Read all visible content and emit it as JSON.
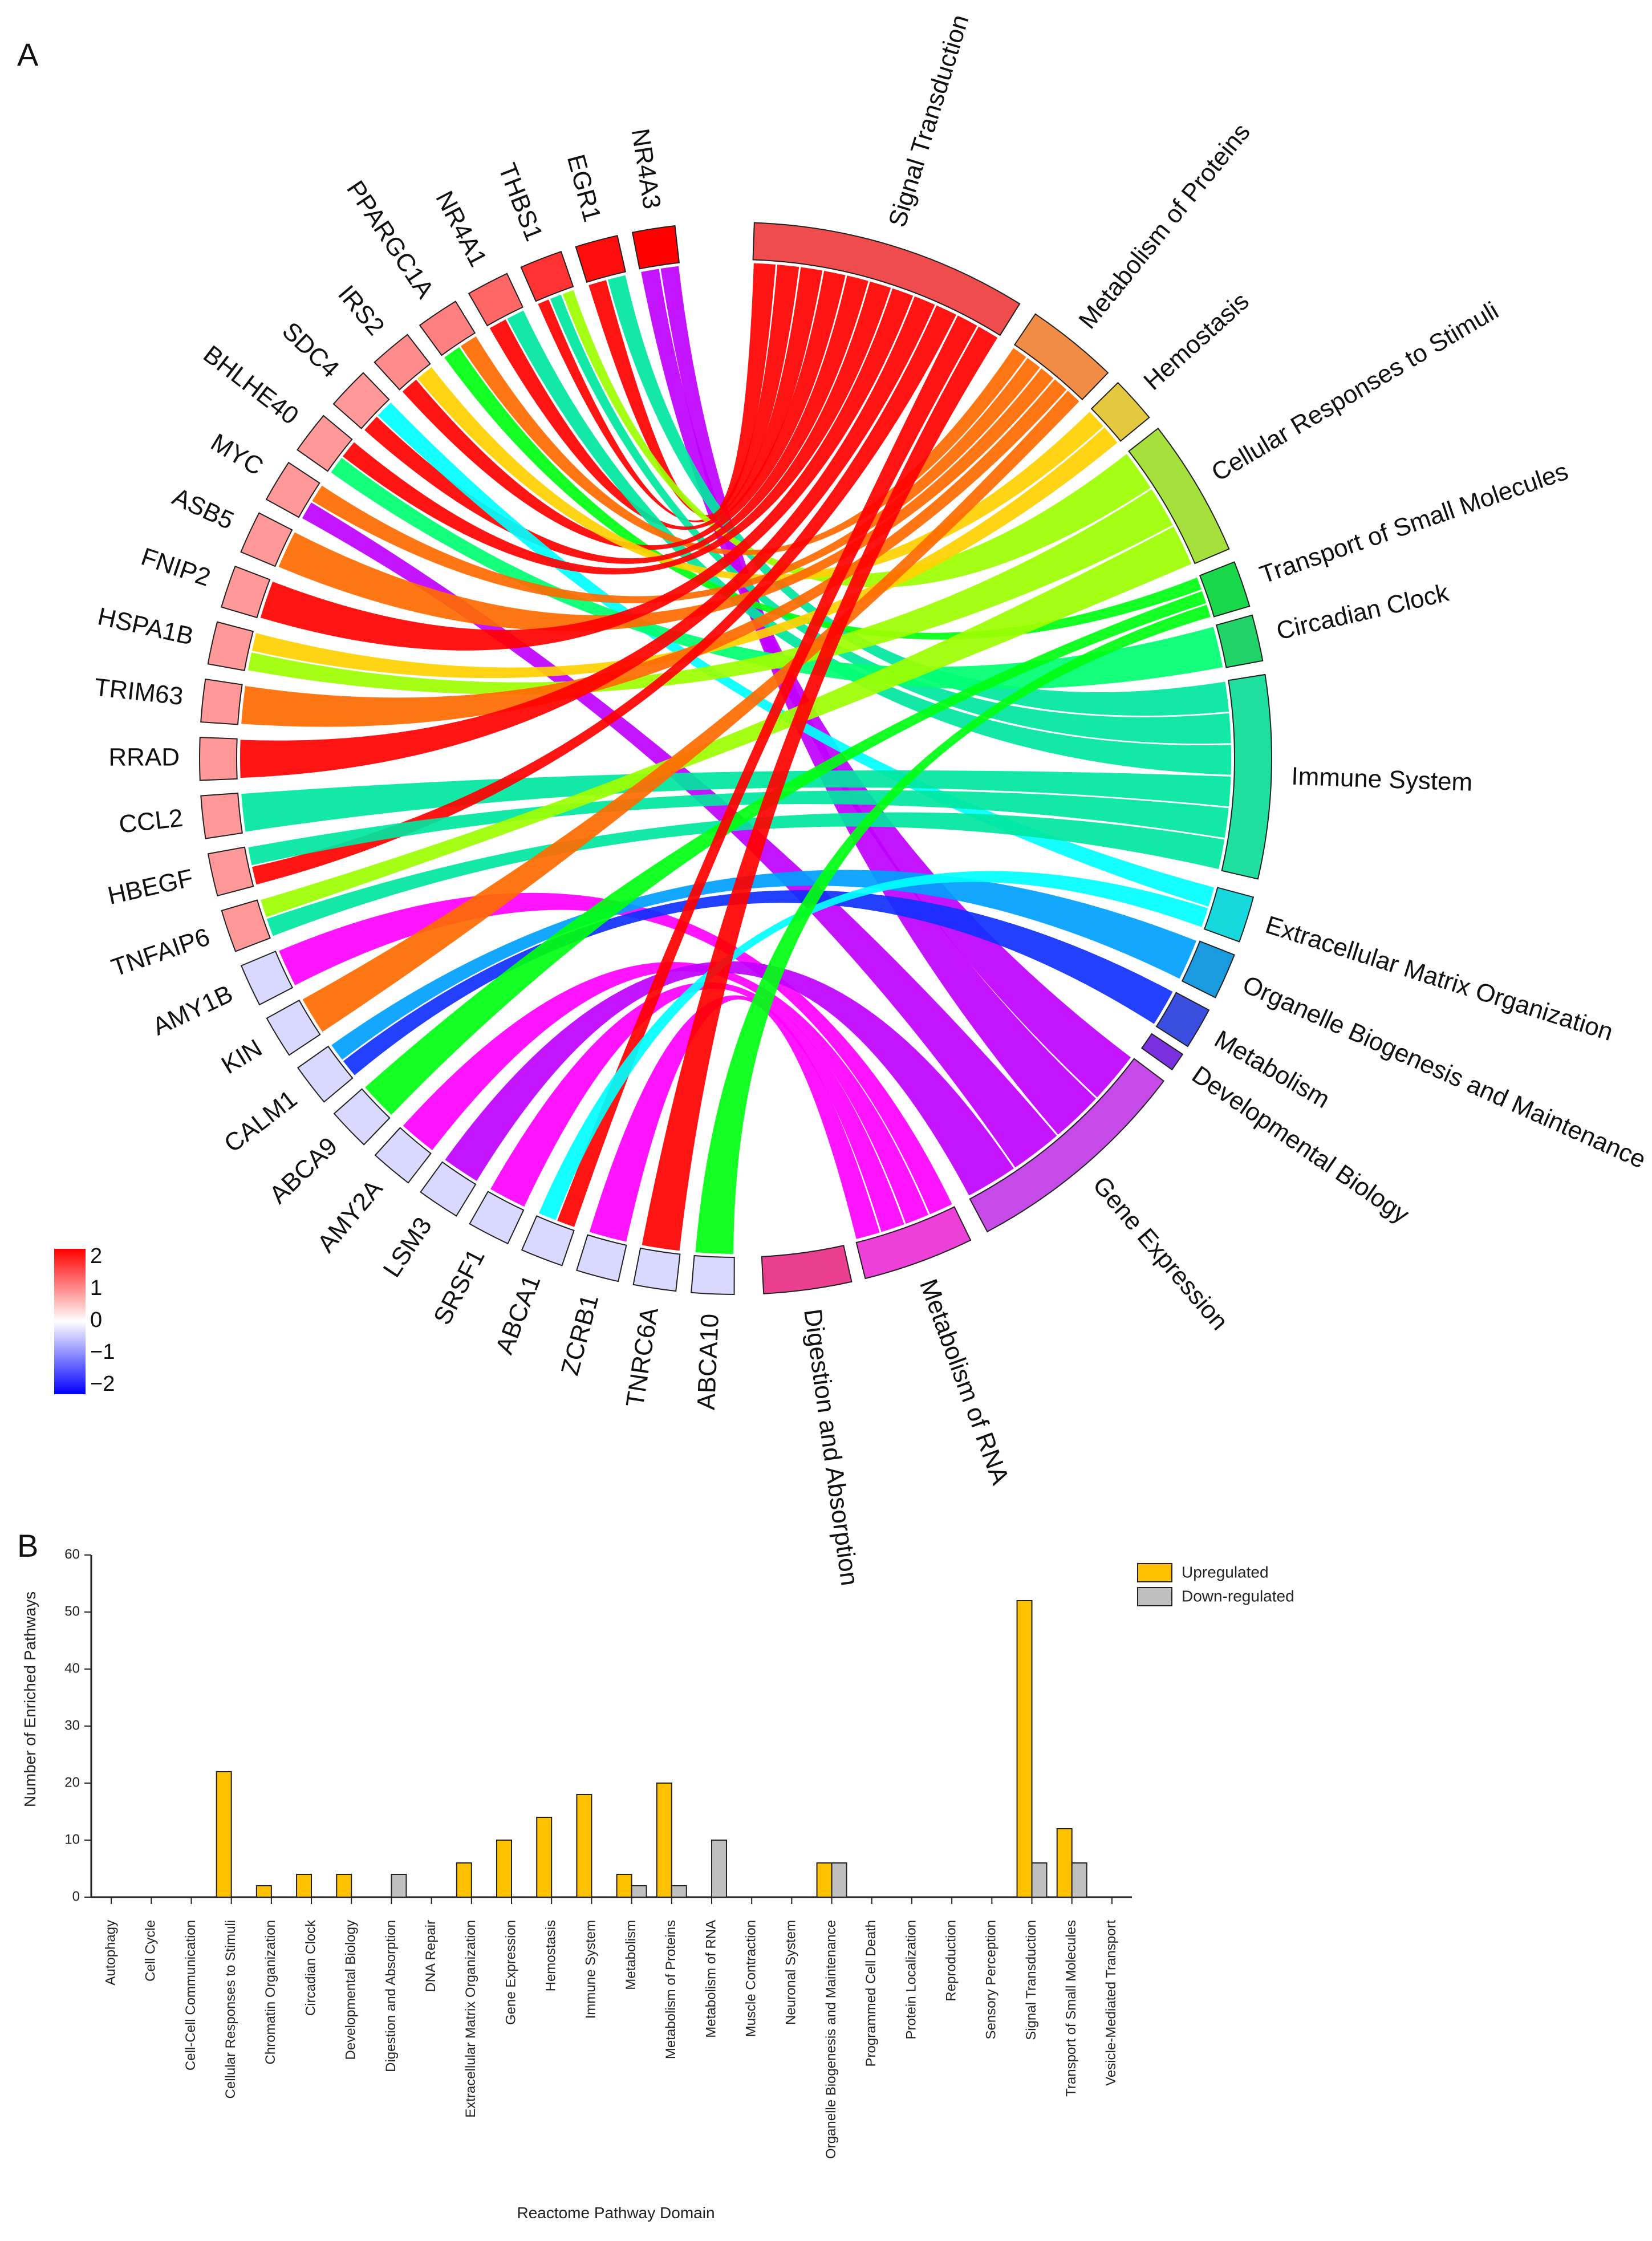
{
  "panelA": {
    "label": "A"
  },
  "panelB": {
    "label": "B"
  },
  "chart_data": [
    {
      "type": "chord",
      "genes": [
        {
          "name": "NR4A3",
          "value": 2.0
        },
        {
          "name": "EGR1",
          "value": 1.9
        },
        {
          "name": "THBS1",
          "value": 1.6
        },
        {
          "name": "NR4A1",
          "value": 1.2
        },
        {
          "name": "PPARGC1A",
          "value": 1.0
        },
        {
          "name": "IRS2",
          "value": 0.9
        },
        {
          "name": "SDC4",
          "value": 0.8
        },
        {
          "name": "BHLHE40",
          "value": 0.8
        },
        {
          "name": "MYC",
          "value": 0.8
        },
        {
          "name": "ASB5",
          "value": 0.8
        },
        {
          "name": "FNIP2",
          "value": 0.8
        },
        {
          "name": "HSPA1B",
          "value": 0.8
        },
        {
          "name": "TRIM63",
          "value": 0.8
        },
        {
          "name": "RRAD",
          "value": 0.8
        },
        {
          "name": "CCL2",
          "value": 0.8
        },
        {
          "name": "HBEGF",
          "value": 0.8
        },
        {
          "name": "TNFAIP6",
          "value": 0.8
        },
        {
          "name": "AMY1B",
          "value": -0.3
        },
        {
          "name": "KIN",
          "value": -0.3
        },
        {
          "name": "CALM1",
          "value": -0.3
        },
        {
          "name": "ABCA9",
          "value": -0.3
        },
        {
          "name": "AMY2A",
          "value": -0.3
        },
        {
          "name": "LSM3",
          "value": -0.3
        },
        {
          "name": "SRSF1",
          "value": -0.3
        },
        {
          "name": "ABCA1",
          "value": -0.3
        },
        {
          "name": "ZCRB1",
          "value": -0.3
        },
        {
          "name": "TNRC6A",
          "value": -0.3
        },
        {
          "name": "ABCA10",
          "value": -0.3
        }
      ],
      "pathways": [
        {
          "name": "Signal Transduction",
          "color": "#ef4d4d"
        },
        {
          "name": "Metabolism of Proteins",
          "color": "#f08c45"
        },
        {
          "name": "Hemostasis",
          "color": "#e3c93e"
        },
        {
          "name": "Cellular Responses to Stimuli",
          "color": "#a6e03c"
        },
        {
          "name": "Transport of Small Molecules",
          "color": "#19d84a"
        },
        {
          "name": "Circadian Clock",
          "color": "#21d369"
        },
        {
          "name": "Immune System",
          "color": "#1fe0a0"
        },
        {
          "name": "Extracellular Matrix Organization",
          "color": "#17d8dc"
        },
        {
          "name": "Organelle Biogenesis and Maintenance",
          "color": "#1a9be0"
        },
        {
          "name": "Metabolism",
          "color": "#3a4fe0"
        },
        {
          "name": "Developmental Biology",
          "color": "#7b30e0"
        },
        {
          "name": "Gene Expression",
          "color": "#c64ae8"
        },
        {
          "name": "Metabolism of RNA",
          "color": "#ec40d8"
        },
        {
          "name": "Digestion and Absorption",
          "color": "#ea3f8e"
        }
      ],
      "colorScale": {
        "ticks": [
          "2",
          "1",
          "0",
          "−1",
          "−2"
        ],
        "min": -2,
        "max": 2
      }
    },
    {
      "type": "bar",
      "title": "",
      "xlabel": "Reactome Pathway Domain",
      "ylabel": "Number of Enriched Pathways",
      "ylim": [
        0,
        60
      ],
      "yticks": [
        0,
        10,
        20,
        30,
        40,
        50,
        60
      ],
      "categories": [
        "Autophagy",
        "Cell Cycle",
        "Cell-Cell Communication",
        "Cellular Responses to Stimuli",
        "Chromatin Organization",
        "Circadian Clock",
        "Developmental Biology",
        "Digestion and Absorption",
        "DNA Repair",
        "Extracellular Matrix Organization",
        "Gene Expression",
        "Hemostasis",
        "Immune System",
        "Metabolism",
        "Metabolism of Proteins",
        "Metabolism of RNA",
        "Muscle Contraction",
        "Neuronal System",
        "Organelle Biogenesis and Maintenance",
        "Programmed Cell Death",
        "Protein Localization",
        "Reproduction",
        "Sensory Perception",
        "Signal Transduction",
        "Transport of Small Molecules",
        "Vesicle-Mediated Transport"
      ],
      "series": [
        {
          "name": "Upregulated",
          "color": "#ffc000",
          "values": [
            0,
            0,
            0,
            22,
            2,
            4,
            4,
            0,
            0,
            6,
            10,
            14,
            18,
            4,
            20,
            0,
            0,
            0,
            6,
            0,
            0,
            0,
            0,
            52,
            12,
            0
          ]
        },
        {
          "name": "Down-regulated",
          "color": "#bfbfbf",
          "values": [
            0,
            0,
            0,
            0,
            0,
            0,
            0,
            4,
            0,
            0,
            0,
            0,
            0,
            2,
            2,
            10,
            0,
            0,
            6,
            0,
            0,
            0,
            0,
            6,
            6,
            0
          ]
        }
      ],
      "legend_position": "top-right"
    }
  ]
}
